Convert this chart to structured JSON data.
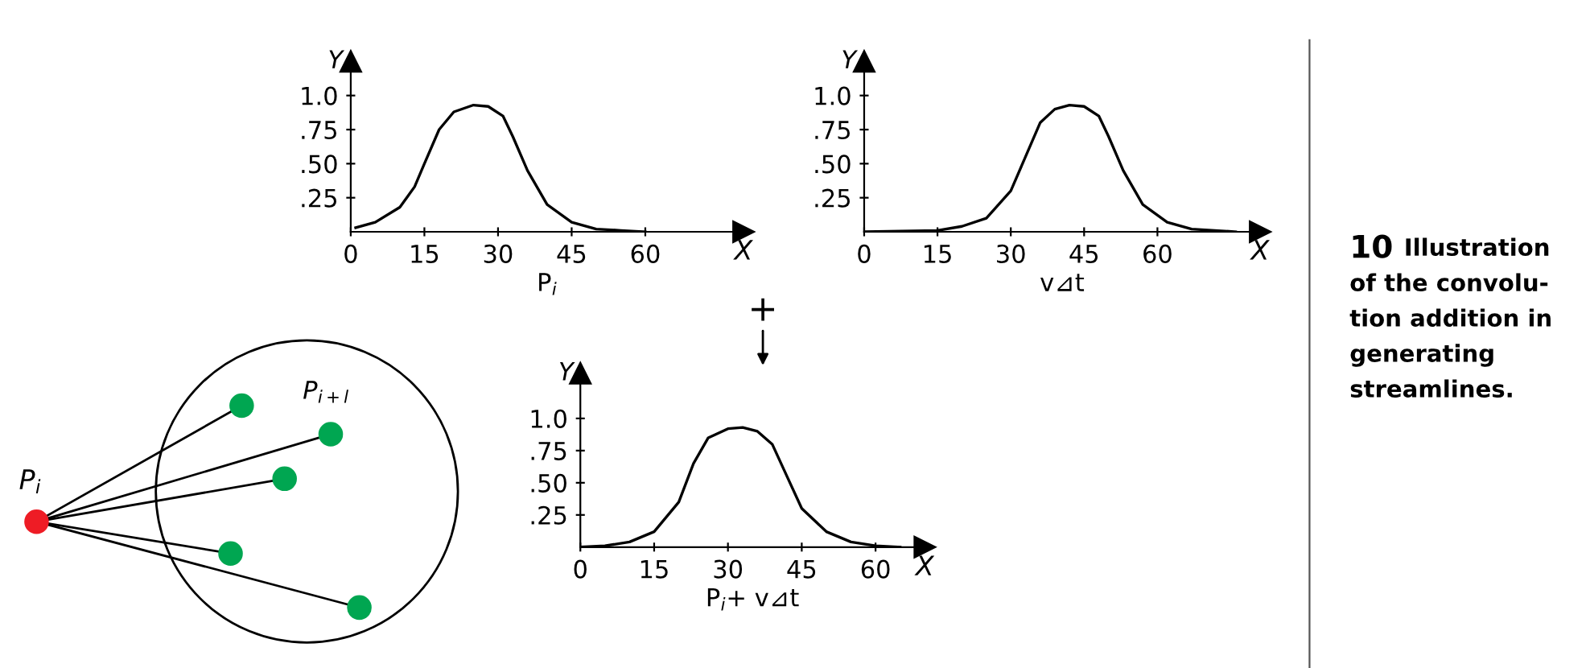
{
  "chart_data": [
    {
      "type": "line",
      "xlabel": "P$_{i}$",
      "ylabel": "Y",
      "annotations": [
        "X"
      ],
      "x": [
        1,
        5,
        10,
        13,
        15,
        18,
        21,
        25,
        28,
        31,
        33,
        36,
        40,
        45,
        50,
        55,
        60
      ],
      "series": [
        {
          "color": "#000000",
          "values": [
            0.03,
            0.07,
            0.18,
            0.33,
            0.5,
            0.75,
            0.88,
            0.93,
            0.92,
            0.85,
            0.7,
            0.45,
            0.2,
            0.07,
            0.02,
            0.01,
            0
          ]
        }
      ],
      "xlim": [
        0,
        80
      ],
      "ylim": [
        0,
        1.25
      ],
      "xticks": [
        0,
        15,
        30,
        45,
        60
      ],
      "yticks": [
        {
          "value": 0.25,
          "label": ".25"
        },
        {
          "value": 0.5,
          "label": ".50"
        },
        {
          "value": 0.75,
          "label": ".75"
        },
        {
          "value": 1.0,
          "label": "1.0"
        }
      ],
      "grid": false,
      "legend": false
    },
    {
      "type": "line",
      "xlabel": "v⊿t",
      "ylabel": "Y",
      "annotations": [
        "X"
      ],
      "x": [
        0,
        15,
        20,
        25,
        30,
        33,
        36,
        39,
        42,
        45,
        48,
        50,
        53,
        57,
        62,
        67,
        76
      ],
      "series": [
        {
          "color": "#000000",
          "values": [
            0,
            0.01,
            0.04,
            0.1,
            0.3,
            0.55,
            0.8,
            0.9,
            0.93,
            0.92,
            0.85,
            0.7,
            0.45,
            0.2,
            0.07,
            0.02,
            0
          ]
        }
      ],
      "xlim": [
        0,
        81
      ],
      "ylim": [
        0,
        1.25
      ],
      "xticks": [
        0,
        15,
        30,
        45,
        60
      ],
      "yticks": [
        {
          "value": 0.25,
          "label": ".25"
        },
        {
          "value": 0.5,
          "label": ".50"
        },
        {
          "value": 0.75,
          "label": ".75"
        },
        {
          "value": 1.0,
          "label": "1.0"
        }
      ],
      "grid": false,
      "legend": false
    },
    {
      "type": "line",
      "xlabel": "P$_{i}$+ v⊿t",
      "ylabel": "Y",
      "annotations": [
        "X",
        "+"
      ],
      "x": [
        0,
        5,
        10,
        15,
        20,
        23,
        26,
        30,
        33,
        36,
        39,
        42,
        45,
        50,
        55,
        60,
        65
      ],
      "series": [
        {
          "color": "#000000",
          "values": [
            0,
            0.01,
            0.04,
            0.12,
            0.35,
            0.65,
            0.85,
            0.92,
            0.93,
            0.9,
            0.8,
            0.55,
            0.3,
            0.12,
            0.04,
            0.01,
            0
          ]
        }
      ],
      "xlim": [
        0,
        70
      ],
      "ylim": [
        0,
        1.35
      ],
      "xticks": [
        0,
        15,
        30,
        45,
        60
      ],
      "yticks": [
        {
          "value": 0.25,
          "label": ".25"
        },
        {
          "value": 0.5,
          "label": ".50"
        },
        {
          "value": 0.75,
          "label": ".75"
        },
        {
          "value": 1.0,
          "label": "1.0"
        }
      ],
      "grid": false,
      "legend": false
    },
    {
      "type": "other",
      "annotations": [
        "P$_{i}$",
        "P$_{i+l}$"
      ]
    },
    {
      "type": "other",
      "title": "10",
      "annotations": [
        "Illustration",
        "of the convolu-",
        "tion addition in",
        "generating",
        "streamlines."
      ]
    }
  ]
}
